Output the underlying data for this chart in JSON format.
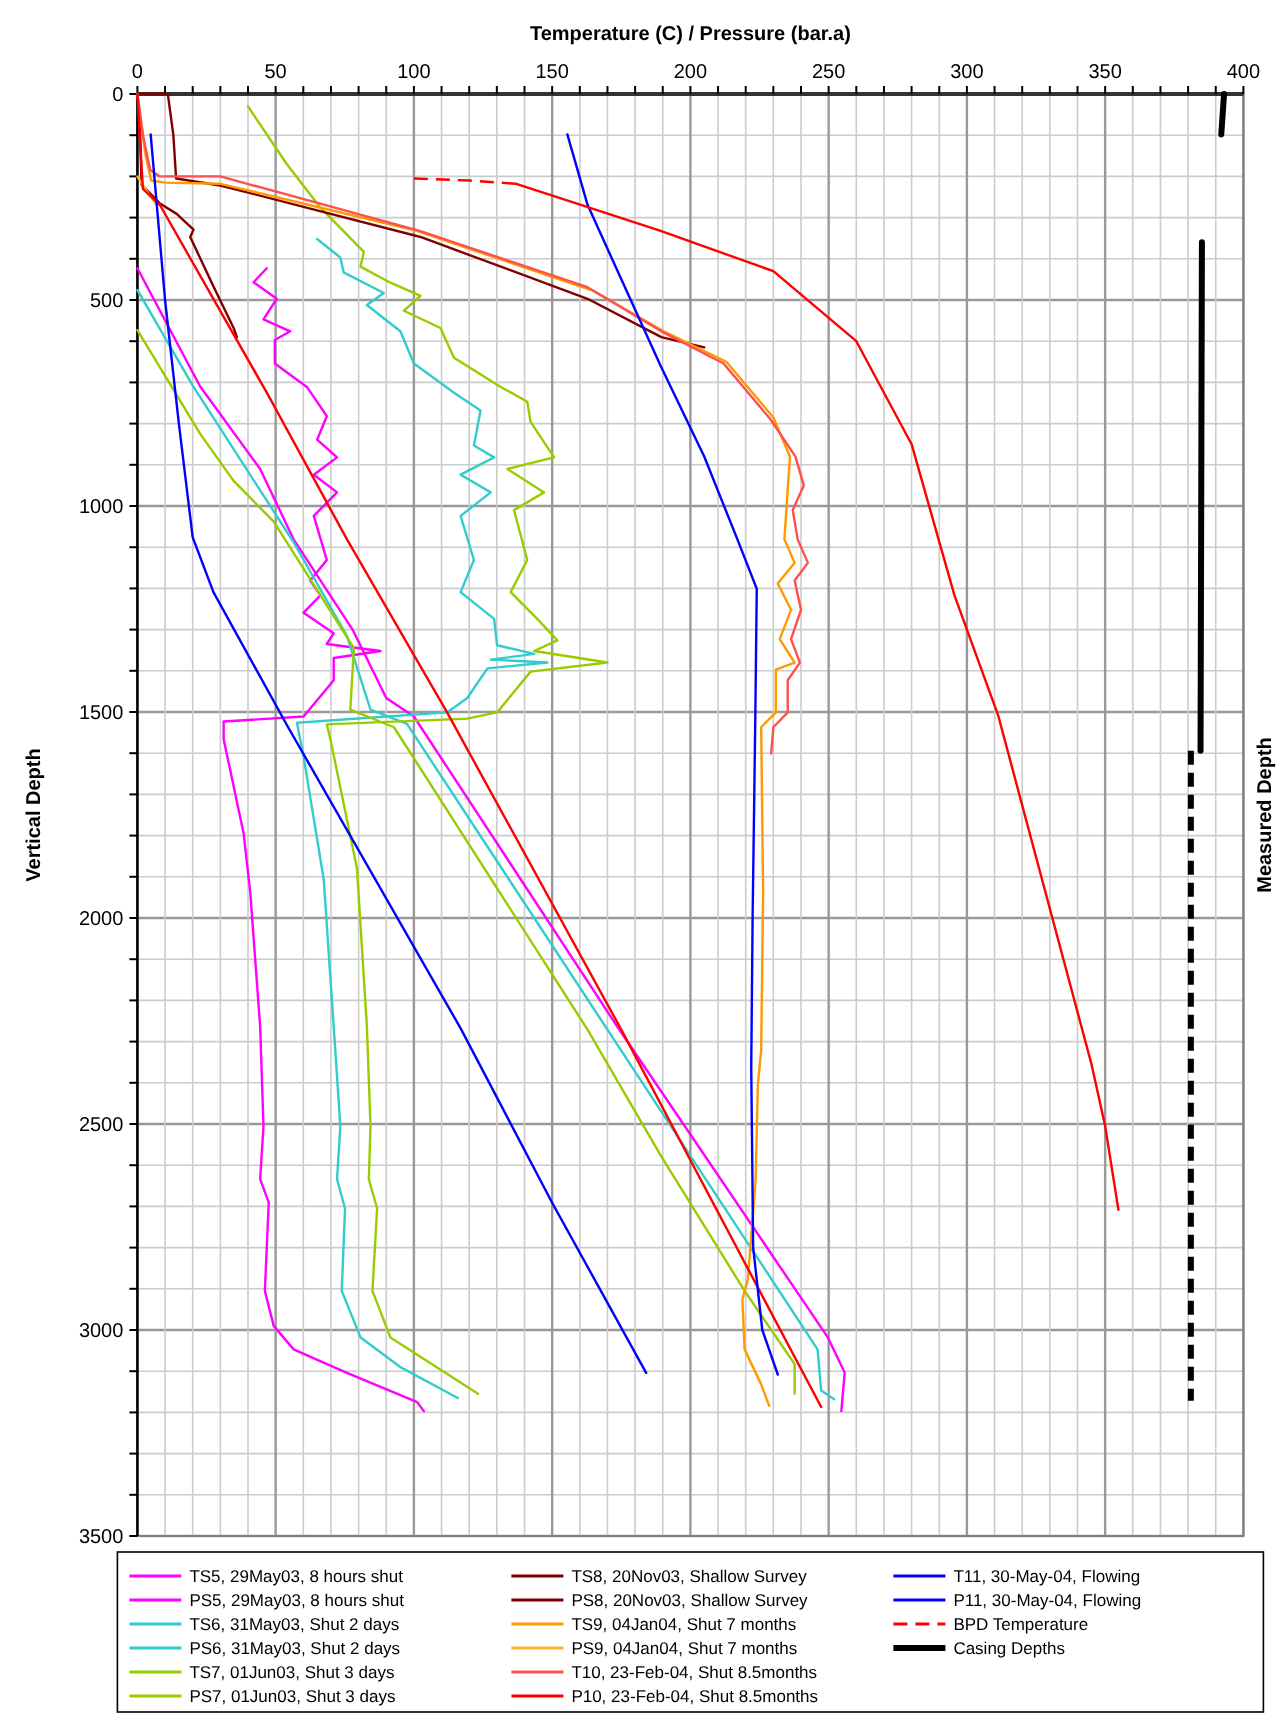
{
  "chart_data": {
    "type": "line",
    "xlabel": "Temperature (C)  /  Pressure (bar.a)",
    "ylabel": "Vertical Depth",
    "y2label": "Measured Depth",
    "xlim": [
      0,
      400
    ],
    "ylim": [
      3500,
      0
    ],
    "xticks": [
      0,
      {
        "value": 10,
        "label": null
      },
      {
        "value": 20,
        "label": null
      },
      {
        "value": 30,
        "label": null
      },
      {
        "value": 40,
        "label": null
      },
      50,
      {
        "value": 60,
        "label": null
      },
      {
        "value": 70,
        "label": null
      },
      {
        "value": 80,
        "label": null
      },
      {
        "value": 90,
        "label": null
      },
      100,
      {
        "value": 110,
        "label": null
      },
      {
        "value": 120,
        "label": null
      },
      {
        "value": 130,
        "label": null
      },
      {
        "value": 140,
        "label": null
      },
      150,
      {
        "value": 160,
        "label": null
      },
      {
        "value": 170,
        "label": null
      },
      {
        "value": 180,
        "label": null
      },
      {
        "value": 190,
        "label": null
      },
      200,
      {
        "value": 210,
        "label": null
      },
      {
        "value": 220,
        "label": null
      },
      {
        "value": 230,
        "label": null
      },
      {
        "value": 240,
        "label": null
      },
      250,
      {
        "value": 260,
        "label": null
      },
      {
        "value": 270,
        "label": null
      },
      {
        "value": 280,
        "label": null
      },
      {
        "value": 290,
        "label": null
      },
      300,
      {
        "value": 310,
        "label": null
      },
      {
        "value": 320,
        "label": null
      },
      {
        "value": 330,
        "label": null
      },
      {
        "value": 340,
        "label": null
      },
      350,
      {
        "value": 360,
        "label": null
      },
      {
        "value": 370,
        "label": null
      },
      {
        "value": 380,
        "label": null
      },
      {
        "value": 390,
        "label": null
      },
      400
    ],
    "yticks": [
      0,
      {
        "value": 100,
        "label": null
      },
      {
        "value": 200,
        "label": null
      },
      {
        "value": 300,
        "label": null
      },
      {
        "value": 400,
        "label": null
      },
      500,
      {
        "value": 600,
        "label": null
      },
      {
        "value": 700,
        "label": null
      },
      {
        "value": 800,
        "label": null
      },
      {
        "value": 900,
        "label": null
      },
      1000,
      {
        "value": 1100,
        "label": null
      },
      {
        "value": 1200,
        "label": null
      },
      {
        "value": 1300,
        "label": null
      },
      {
        "value": 1400,
        "label": null
      },
      1500,
      {
        "value": 1600,
        "label": null
      },
      {
        "value": 1700,
        "label": null
      },
      {
        "value": 1800,
        "label": null
      },
      {
        "value": 1900,
        "label": null
      },
      2000,
      {
        "value": 2100,
        "label": null
      },
      {
        "value": 2200,
        "label": null
      },
      {
        "value": 2300,
        "label": null
      },
      {
        "value": 2400,
        "label": null
      },
      2500,
      {
        "value": 2600,
        "label": null
      },
      {
        "value": 2700,
        "label": null
      },
      {
        "value": 2800,
        "label": null
      },
      {
        "value": 2900,
        "label": null
      },
      3000,
      {
        "value": 3100,
        "label": null
      },
      {
        "value": 3200,
        "label": null
      },
      {
        "value": 3300,
        "label": null
      },
      {
        "value": 3400,
        "label": null
      },
      3500
    ],
    "grid": true,
    "legend": "bottom",
    "marker": "none",
    "series": [
      {
        "name": "TS5, 29May03, 8 hours shut",
        "color": "#ff00ff",
        "x": [
          46.8,
          42,
          50.4,
          45.6,
          55.3,
          49.7,
          49.7,
          61.3,
          68.5,
          65,
          72.2,
          63.8,
          72.2,
          63.8,
          68.5,
          62.5,
          66.2,
          60.1,
          71,
          68.5,
          87.9,
          71,
          71,
          60.1,
          31.2,
          31.2,
          38.4,
          40.8,
          44.4,
          45.6,
          44.4,
          47.5,
          46.1,
          49.3,
          56.5,
          75.8,
          101.2,
          103.6
        ],
        "values": [
          423,
          457,
          497,
          547,
          576,
          597,
          654,
          711,
          782,
          839,
          882,
          924,
          967,
          1024,
          1131,
          1181,
          1217,
          1259,
          1309,
          1335,
          1352,
          1369,
          1423,
          1511,
          1523,
          1566,
          1794,
          1936,
          2264,
          2505,
          2634,
          2691,
          2905,
          2990,
          3047,
          3104,
          3175,
          3197
        ]
      },
      {
        "name": "PS5, 29May03, 8 hours shut",
        "color": "#ff00ff",
        "x": [
          0,
          22.7,
          44.4,
          56.5,
          78,
          90,
          100,
          173.6,
          249.7,
          255.8,
          254.6
        ],
        "values": [
          423,
          710,
          910,
          1081,
          1302,
          1466,
          1511,
          2264,
          3018,
          3103,
          3197
        ]
      },
      {
        "name": "TS6, 31May03, Shut 2 days",
        "color": "#33cccc",
        "x": [
          65,
          73.4,
          74.6,
          89.1,
          83,
          95.1,
          100,
          114.5,
          124.1,
          121.7,
          129,
          116.9,
          127.8,
          116.9,
          121.7,
          116.9,
          129,
          130.1,
          143.5,
          127.8,
          148.3,
          126.6,
          119.3,
          112,
          57.7,
          60.1,
          67.4,
          71,
          73.4,
          72.2,
          75.1,
          73.9,
          80.7,
          95.1,
          115.9
        ],
        "values": [
          352,
          397,
          433,
          483,
          512,
          576,
          654,
          725,
          768,
          853,
          882,
          924,
          967,
          1024,
          1131,
          1209,
          1274,
          1338,
          1359,
          1373,
          1380,
          1394,
          1466,
          1501,
          1526,
          1608,
          1907,
          2264,
          2505,
          2634,
          2705,
          2905,
          3018,
          3090,
          3165
        ]
      },
      {
        "name": "PS6, 31May03, Shut 2 days",
        "color": "#33cccc",
        "x": [
          0,
          20.3,
          56.5,
          75.8,
          84.3,
          97.5,
          170,
          246,
          247.3,
          252
        ],
        "values": [
          476,
          711,
          1088,
          1316,
          1494,
          1529,
          2271,
          3047,
          3147,
          3168
        ]
      },
      {
        "name": "TS7, 01Jun03, Shut 3 days",
        "color": "#99cc00",
        "x": [
          40,
          54,
          66.2,
          81.9,
          80.7,
          90.3,
          102.4,
          96.4,
          109.6,
          114.5,
          131.4,
          141,
          142.2,
          150.7,
          133.8,
          147.1,
          136.2,
          141,
          135,
          144.6,
          151.9,
          143.5,
          170,
          142.2,
          130.1,
          119.3,
          68.5,
          69.8,
          79.4,
          83,
          84.3,
          83.7,
          86.7,
          85,
          91.5,
          123.2
        ],
        "values": [
          30,
          170,
          276,
          383,
          419,
          454,
          490,
          526,
          568,
          640,
          711,
          747,
          796,
          882,
          910,
          967,
          1010,
          1131,
          1209,
          1274,
          1326,
          1352,
          1380,
          1402,
          1501,
          1516,
          1530,
          1566,
          1879,
          2264,
          2505,
          2634,
          2705,
          2905,
          3018,
          3155
        ]
      },
      {
        "name": "PS7, 01Jun03, Shut 3 days",
        "color": "#99cc00",
        "x": [
          0,
          22.7,
          34.8,
          49.3,
          78.3,
          77,
          92.8,
          162.8,
          189.3,
          219.6,
          237.7,
          237.7
        ],
        "values": [
          573,
          825,
          939,
          1038,
          1345,
          1494,
          1537,
          2271,
          2577,
          2905,
          3083,
          3154
        ]
      },
      {
        "name": "TS8, 20Nov03, Shallow Survey",
        "color": "#800000",
        "x": [
          0,
          11,
          13,
          14,
          30,
          102.4,
          162.8,
          189.5,
          205
        ],
        "values": [
          0,
          0,
          100,
          205,
          222,
          347,
          497,
          590,
          615
        ]
      },
      {
        "name": "PS8, 20Nov03, Shallow Survey",
        "color": "#800000",
        "x": [
          0,
          1,
          1.5,
          8,
          14.2,
          20.3,
          19.1,
          27,
          34.8,
          36
        ],
        "values": [
          0,
          100,
          220,
          265,
          291,
          329,
          347,
          460,
          568,
          590
        ]
      },
      {
        "name": "TS9, 04Jan04, Shut 7 months",
        "color": "#ff9900",
        "x": [
          0,
          3,
          5,
          10,
          30,
          100,
          165,
          190,
          213,
          230,
          236,
          234,
          237.7,
          231.6,
          236.4,
          232.3,
          237.7,
          230.9,
          230.9,
          225.6,
          226.3,
          225.6,
          224.4,
          223.6,
          220.8,
          218.8,
          219.6,
          225.6,
          228.5
        ],
        "values": [
          0,
          150,
          210,
          215,
          218,
          330,
          478,
          575,
          650,
          785,
          880,
          1081,
          1138,
          1188,
          1252,
          1323,
          1380,
          1397,
          1501,
          1537,
          1936,
          2320,
          2406,
          2634,
          2876,
          2926,
          3047,
          3132,
          3184
        ]
      },
      {
        "name": "PS9, 04Jan04, Shut 7 months",
        "color": "#ffb030",
        "x": [
          0,
          2,
          7
        ],
        "values": [
          200,
          222,
          270
        ]
      },
      {
        "name": "T10, 23-Feb-04, Shut 8.5months",
        "color": "#ff5050",
        "x": [
          0,
          2,
          4.6,
          8,
          30,
          102.4,
          162.8,
          189.5,
          212,
          229,
          238,
          241,
          237,
          238.8,
          242.5,
          237.7,
          240,
          236.4,
          239.6,
          235.2,
          235.2,
          230,
          229.2
        ],
        "values": [
          0,
          100,
          184,
          200,
          200,
          333,
          469,
          576,
          654,
          790,
          880,
          950,
          1010,
          1081,
          1138,
          1181,
          1252,
          1323,
          1380,
          1423,
          1501,
          1537,
          1601
        ]
      },
      {
        "name": "P10, 23-Feb-04, Shut 8.5months",
        "color": "#ff0000",
        "x": [
          0,
          1,
          2,
          8.2,
          46.8,
          75.8,
          112,
          175,
          247.3
        ],
        "values": [
          0,
          120,
          230,
          270,
          725,
          1081,
          1501,
          2271,
          3187
        ]
      },
      {
        "name": "T11, 30-May-04, Flowing",
        "color": "#0000ff",
        "x": [
          155.5,
          162.8,
          189.3,
          205,
          217,
          224,
          223.5,
          222.5,
          222,
          222.7,
          226,
          231.6
        ],
        "values": [
          98,
          269,
          661,
          880,
          1081,
          1201,
          1500,
          2000,
          2363,
          2800,
          3000,
          3108
        ]
      },
      {
        "name": "P11, 30-May-04, Flowing",
        "color": "#0000ff",
        "x": [
          4.8,
          10,
          15,
          20,
          27.5,
          54,
          117,
          150,
          184
        ],
        "values": [
          98,
          500,
          800,
          1076,
          1209,
          1531,
          2269,
          2691,
          3104
        ]
      },
      {
        "name": "BPD Temperature",
        "color": "#ff0000",
        "line_style": "dashed",
        "x": [
          100,
          120,
          137
        ],
        "values": [
          205,
          210,
          218
        ]
      },
      {
        "color": "#ff0000",
        "x": [
          137,
          160.4,
          189.5,
          230,
          260,
          280,
          295.5,
          311.3,
          345.1,
          350,
          354.8
        ],
        "values": [
          218,
          269,
          333,
          430,
          600,
          850,
          1217,
          1508,
          2356,
          2505,
          2708
        ]
      },
      {
        "name": "Casing Depths",
        "color": "#000000",
        "x": [
          393,
          392
        ],
        "values": [
          0,
          98
        ]
      },
      {
        "color": "#000000",
        "x": [
          385,
          384.5
        ],
        "values": [
          360,
          1594
        ]
      },
      {
        "color": "#000000",
        "line_style": "dashed",
        "x": [
          381,
          381
        ],
        "values": [
          1594,
          3172
        ]
      }
    ]
  }
}
